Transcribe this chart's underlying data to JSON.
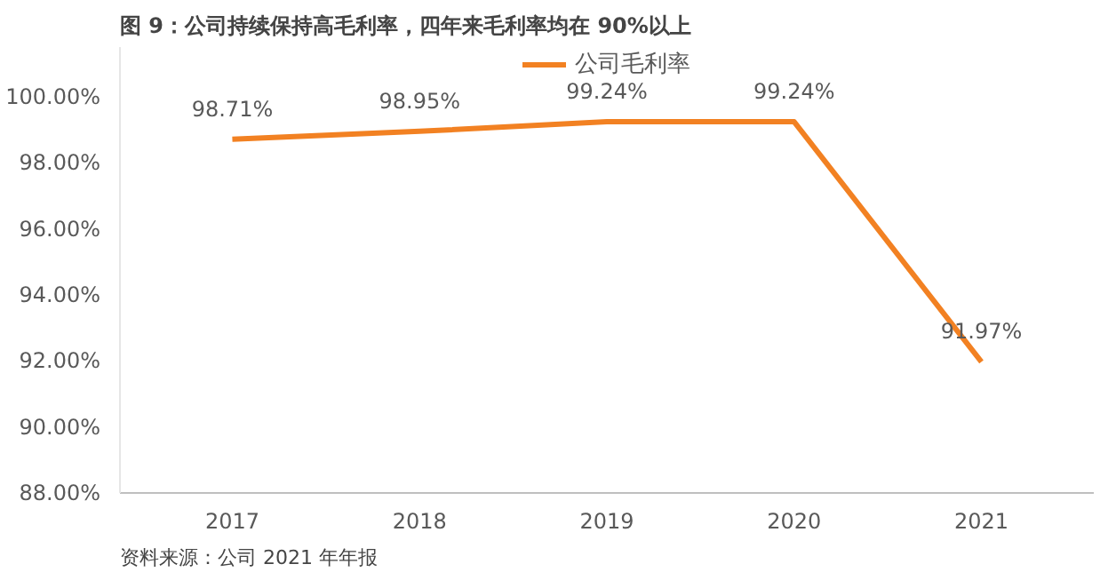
{
  "chart_data": {
    "type": "line",
    "title": "图 9：公司持续保持高毛利率，四年来毛利率均在 90%以上",
    "categories": [
      "2017",
      "2018",
      "2019",
      "2020",
      "2021"
    ],
    "series": [
      {
        "name": "公司毛利率",
        "color": "#f28122",
        "values": [
          98.71,
          98.95,
          99.24,
          99.24,
          91.97
        ],
        "value_labels": [
          "98.71%",
          "98.95%",
          "99.24%",
          "99.24%",
          "91.97%"
        ]
      }
    ],
    "ylim": [
      88,
      101.5
    ],
    "yticks": [
      {
        "value": 88,
        "label": "88.00%"
      },
      {
        "value": 90,
        "label": "90.00%"
      },
      {
        "value": 92,
        "label": "92.00%"
      },
      {
        "value": 94,
        "label": "94.00%"
      },
      {
        "value": 96,
        "label": "96.00%"
      },
      {
        "value": 98,
        "label": "98.00%"
      },
      {
        "value": 100,
        "label": "100.00%"
      }
    ],
    "grid": false,
    "legend": "top",
    "marker": "none",
    "line_style": "solid",
    "annotations": [
      "资料来源：公司 2021 年年报"
    ]
  }
}
